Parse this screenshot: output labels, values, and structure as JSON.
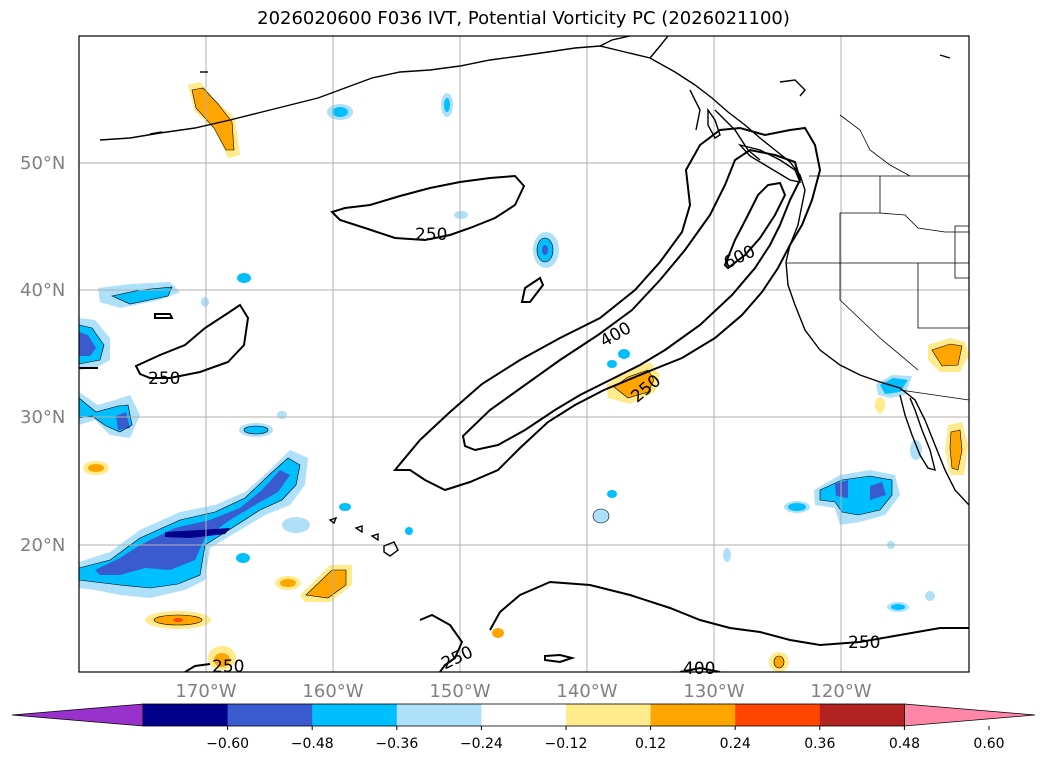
{
  "title": "2026020600 F036 IVT, Potential Vorticity PC (2026021100)",
  "lat_labels": [
    "50°N",
    "40°N",
    "30°N",
    "20°N"
  ],
  "lon_labels": [
    "170°W",
    "160°W",
    "150°W",
    "140°W",
    "130°W",
    "120°W"
  ],
  "contour_labels": [
    "250",
    "250",
    "250",
    "250",
    "250",
    "400",
    "400",
    "600",
    "250"
  ],
  "colorbar": {
    "ticks": [
      "−0.60",
      "−0.48",
      "−0.36",
      "−0.24",
      "−0.12",
      "0.12",
      "0.24",
      "0.36",
      "0.48",
      "0.60"
    ],
    "colors": [
      "#9932cc",
      "#00008b",
      "#3a5bd0",
      "#00bfff",
      "#aee0fa",
      "#ffffff",
      "#ffea8c",
      "#ffa500",
      "#ff4500",
      "#b22222",
      "#ff86a8"
    ]
  },
  "fill_colors": {
    "neg_light": "#aee0fa",
    "neg_mid": "#00bfff",
    "neg_dark": "#3a5bd0",
    "neg_darkest": "#00008b",
    "pos_light": "#ffea8c",
    "pos_mid": "#ffa500",
    "pos_dark": "#ff4500"
  }
}
